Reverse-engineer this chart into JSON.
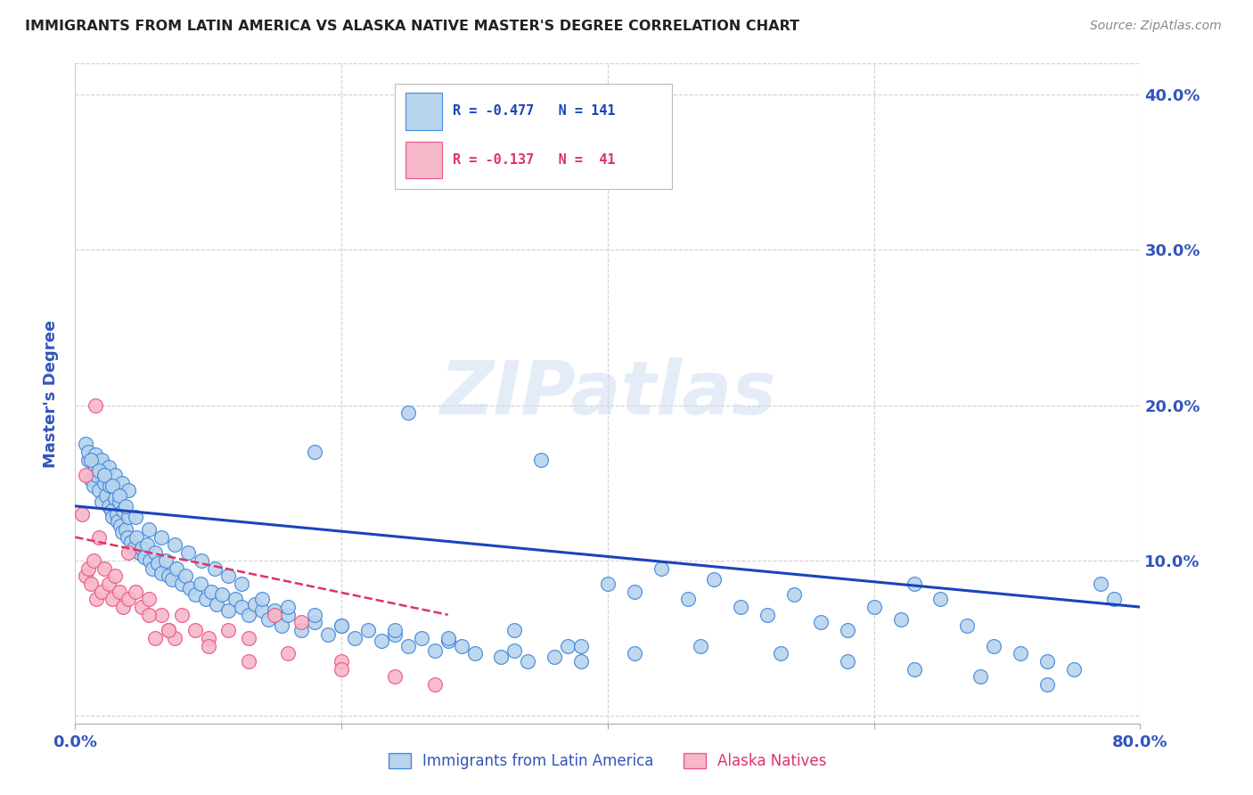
{
  "title": "IMMIGRANTS FROM LATIN AMERICA VS ALASKA NATIVE MASTER'S DEGREE CORRELATION CHART",
  "source": "Source: ZipAtlas.com",
  "ylabel": "Master's Degree",
  "watermark": "ZIPatlas",
  "legend_blue_r": "-0.477",
  "legend_blue_n": "141",
  "legend_pink_r": "-0.137",
  "legend_pink_n": " 41",
  "blue_color": "#b8d4ed",
  "pink_color": "#f5b8c8",
  "blue_line_color": "#1a44bb",
  "pink_line_color": "#dd3366",
  "blue_edge_color": "#4488dd",
  "pink_edge_color": "#ee5588",
  "blue_scatter_x": [
    0.8,
    1.0,
    1.2,
    1.4,
    1.5,
    1.6,
    1.8,
    2.0,
    2.1,
    2.2,
    2.3,
    2.5,
    2.6,
    2.7,
    2.8,
    3.0,
    3.1,
    3.2,
    3.3,
    3.4,
    3.5,
    3.6,
    3.8,
    3.9,
    4.0,
    4.2,
    4.4,
    4.6,
    4.8,
    5.0,
    5.2,
    5.4,
    5.6,
    5.8,
    6.0,
    6.2,
    6.5,
    6.8,
    7.0,
    7.3,
    7.6,
    8.0,
    8.3,
    8.6,
    9.0,
    9.4,
    9.8,
    10.2,
    10.6,
    11.0,
    11.5,
    12.0,
    12.5,
    13.0,
    13.5,
    14.0,
    14.5,
    15.0,
    15.5,
    16.0,
    17.0,
    18.0,
    19.0,
    20.0,
    21.0,
    22.0,
    23.0,
    24.0,
    25.0,
    26.0,
    27.0,
    28.0,
    29.0,
    30.0,
    32.0,
    33.0,
    34.0,
    36.0,
    37.0,
    38.0,
    40.0,
    42.0,
    44.0,
    46.0,
    48.0,
    50.0,
    52.0,
    54.0,
    56.0,
    58.0,
    60.0,
    62.0,
    63.0,
    65.0,
    67.0,
    69.0,
    71.0,
    73.0,
    75.0,
    77.0,
    1.0,
    1.5,
    2.0,
    2.5,
    3.0,
    3.5,
    4.0,
    1.2,
    1.8,
    2.2,
    2.8,
    3.3,
    3.8,
    4.5,
    5.5,
    6.5,
    7.5,
    8.5,
    9.5,
    10.5,
    11.5,
    12.5,
    14.0,
    16.0,
    18.0,
    20.0,
    24.0,
    28.0,
    33.0,
    38.0,
    42.0,
    47.0,
    53.0,
    58.0,
    63.0,
    68.0,
    73.0,
    78.0,
    25.0,
    18.0,
    35.0
  ],
  "blue_scatter_y": [
    17.5,
    16.5,
    15.2,
    14.8,
    16.0,
    15.5,
    14.5,
    13.8,
    16.2,
    15.0,
    14.2,
    13.5,
    14.8,
    13.2,
    12.8,
    14.0,
    13.0,
    12.5,
    13.8,
    12.2,
    11.8,
    13.2,
    12.0,
    11.5,
    12.8,
    11.2,
    10.8,
    11.5,
    10.5,
    10.8,
    10.2,
    11.0,
    10.0,
    9.5,
    10.5,
    9.8,
    9.2,
    10.0,
    9.0,
    8.8,
    9.5,
    8.5,
    9.0,
    8.2,
    7.8,
    8.5,
    7.5,
    8.0,
    7.2,
    7.8,
    6.8,
    7.5,
    7.0,
    6.5,
    7.2,
    6.8,
    6.2,
    6.8,
    5.8,
    6.5,
    5.5,
    6.0,
    5.2,
    5.8,
    5.0,
    5.5,
    4.8,
    5.2,
    4.5,
    5.0,
    4.2,
    4.8,
    4.5,
    4.0,
    3.8,
    4.2,
    3.5,
    3.8,
    4.5,
    3.5,
    8.5,
    8.0,
    9.5,
    7.5,
    8.8,
    7.0,
    6.5,
    7.8,
    6.0,
    5.5,
    7.0,
    6.2,
    8.5,
    7.5,
    5.8,
    4.5,
    4.0,
    3.5,
    3.0,
    8.5,
    17.0,
    16.8,
    16.5,
    16.0,
    15.5,
    15.0,
    14.5,
    16.5,
    15.8,
    15.5,
    14.8,
    14.2,
    13.5,
    12.8,
    12.0,
    11.5,
    11.0,
    10.5,
    10.0,
    9.5,
    9.0,
    8.5,
    7.5,
    7.0,
    6.5,
    5.8,
    5.5,
    5.0,
    5.5,
    4.5,
    4.0,
    4.5,
    4.0,
    3.5,
    3.0,
    2.5,
    2.0,
    7.5,
    19.5,
    17.0,
    16.5
  ],
  "pink_scatter_x": [
    0.5,
    0.8,
    1.0,
    1.2,
    1.4,
    1.6,
    1.8,
    2.0,
    2.2,
    2.5,
    2.8,
    3.0,
    3.3,
    3.6,
    4.0,
    4.5,
    5.0,
    5.5,
    6.0,
    6.5,
    7.0,
    7.5,
    8.0,
    9.0,
    10.0,
    11.5,
    13.0,
    15.0,
    17.0,
    20.0,
    4.0,
    5.5,
    7.0,
    10.0,
    13.0,
    16.0,
    20.0,
    24.0,
    27.0,
    0.8,
    1.5
  ],
  "pink_scatter_y": [
    13.0,
    9.0,
    9.5,
    8.5,
    10.0,
    7.5,
    11.5,
    8.0,
    9.5,
    8.5,
    7.5,
    9.0,
    8.0,
    7.0,
    7.5,
    8.0,
    7.0,
    7.5,
    5.0,
    6.5,
    5.5,
    5.0,
    6.5,
    5.5,
    5.0,
    5.5,
    5.0,
    6.5,
    6.0,
    3.5,
    10.5,
    6.5,
    5.5,
    4.5,
    3.5,
    4.0,
    3.0,
    2.5,
    2.0,
    15.5,
    20.0
  ],
  "xlim": [
    0.0,
    80.0
  ],
  "ylim": [
    -0.5,
    42.0
  ],
  "blue_trend_x0": 0.0,
  "blue_trend_x1": 80.0,
  "blue_trend_y0": 13.5,
  "blue_trend_y1": 7.0,
  "pink_trend_x0": 0.0,
  "pink_trend_x1": 28.0,
  "pink_trend_y0": 11.5,
  "pink_trend_y1": 6.5,
  "xticks": [
    0.0,
    20.0,
    40.0,
    60.0,
    80.0
  ],
  "xticklabels": [
    "0.0%",
    "",
    "",
    "",
    "80.0%"
  ],
  "yticks": [
    0.0,
    10.0,
    20.0,
    30.0,
    40.0
  ],
  "right_yticklabels": [
    "",
    "10.0%",
    "20.0%",
    "30.0%",
    "40.0%"
  ],
  "background_color": "#ffffff",
  "grid_color": "#cccccc",
  "title_color": "#222222",
  "axis_label_color": "#3355bb",
  "tick_color": "#3355bb"
}
